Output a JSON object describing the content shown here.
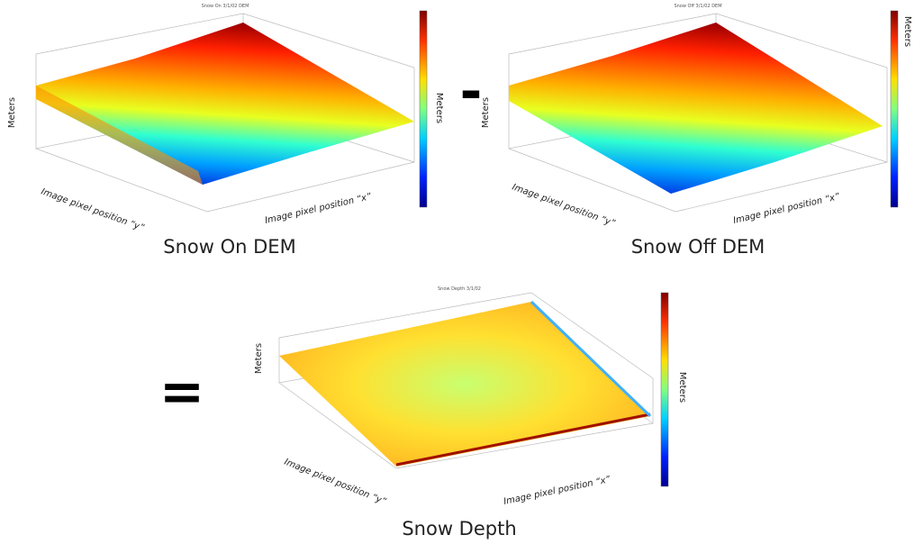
{
  "panels": [
    {
      "title": "Snow On 3/1/02 DEM",
      "z_label": "Meters",
      "y_label": "Image pixel position “y”",
      "x_label": "Image pixel position “x”",
      "colorbar_label": "Meters",
      "caption": "Snow On DEM"
    },
    {
      "title": "Snow Off 3/1/02 DEM",
      "z_label": "Meters",
      "y_label": "Image pixel position “y”",
      "x_label": "Image pixel position “x”",
      "colorbar_label": "Meters",
      "caption": "Snow Off DEM"
    },
    {
      "title": "Snow Depth 3/1/02",
      "z_label": "Meters",
      "y_label": "Image pixel position “y”",
      "x_label": "Image pixel position “x”",
      "colorbar_label": "Meters",
      "caption": "Snow Depth"
    }
  ],
  "operators": [
    "-",
    "="
  ]
}
